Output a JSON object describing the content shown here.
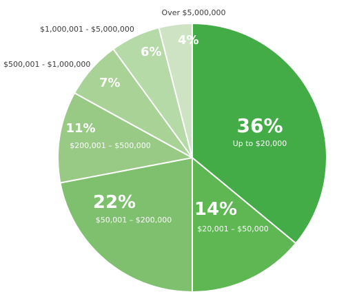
{
  "chart_data": {
    "type": "pie",
    "slices": [
      {
        "label": "Up to $20,000",
        "value": 36,
        "value_label": "36%",
        "color": "#43ac47",
        "label_position": "inside"
      },
      {
        "label": "$20,001 – $50,000",
        "value": 14,
        "value_label": "14%",
        "color": "#5eb753",
        "label_position": "inside"
      },
      {
        "label": "$50,001 – $200,000",
        "value": 22,
        "value_label": "22%",
        "color": "#7ec06d",
        "label_position": "inside"
      },
      {
        "label": "$200,001 – $500,000",
        "value": 11,
        "value_label": "11%",
        "color": "#98ca86",
        "label_position": "inside"
      },
      {
        "label": "$500,001 - $1,000,000",
        "value": 7,
        "value_label": "7%",
        "color": "#a9d296",
        "label_position": "outside"
      },
      {
        "label": "$1,000,001 - $5,000,000",
        "value": 6,
        "value_label": "6%",
        "color": "#b6d9a8",
        "label_position": "outside"
      },
      {
        "label": "Over $5,000,000",
        "value": 4,
        "value_label": "4%",
        "color": "#cde3c3",
        "label_position": "outside"
      }
    ],
    "start_angle_deg": 0,
    "direction": "clockwise",
    "title": "",
    "legend": "none"
  }
}
